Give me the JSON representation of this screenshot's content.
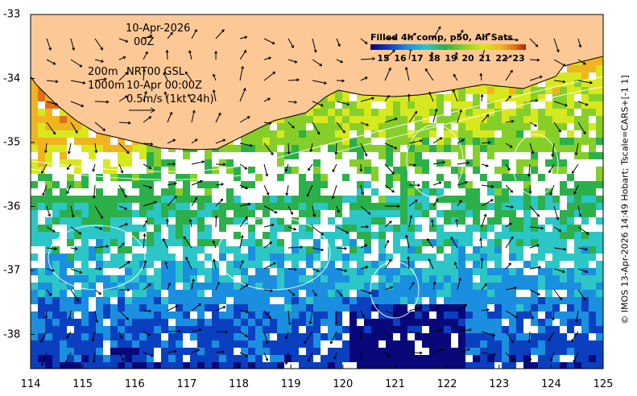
{
  "map": {
    "date_label": "10-Apr-2026",
    "time_label": "00Z",
    "contour_legend": [
      {
        "depth": "200m",
        "text": "NRT00 GSL"
      },
      {
        "depth": "1000m",
        "text": "10-Apr 00:00Z"
      }
    ],
    "vector_scale_label": "0.5m/s (1kt 24h)",
    "credit": "© IMOS 13-Apr-2026 14:49 Hobart; Tscale=CARS+[-1 1]",
    "colorbar": {
      "title": "Filled 4h comp, p50, All Sats",
      "ticks": [
        "15",
        "16",
        "17",
        "18",
        "19",
        "20",
        "21",
        "22",
        "23"
      ],
      "colors": [
        "#08087a",
        "#0a3fc0",
        "#1a8fe0",
        "#2cc6c6",
        "#2cb04a",
        "#86cf2a",
        "#d8e81e",
        "#f0b41e",
        "#e0701a",
        "#b02010"
      ]
    },
    "x_ticks": [
      "114",
      "115",
      "116",
      "117",
      "118",
      "119",
      "120",
      "121",
      "122",
      "123",
      "124",
      "125"
    ],
    "y_ticks": [
      "-33",
      "-34",
      "-35",
      "-36",
      "-37",
      "-38"
    ],
    "land_color": "#fcc896"
  }
}
